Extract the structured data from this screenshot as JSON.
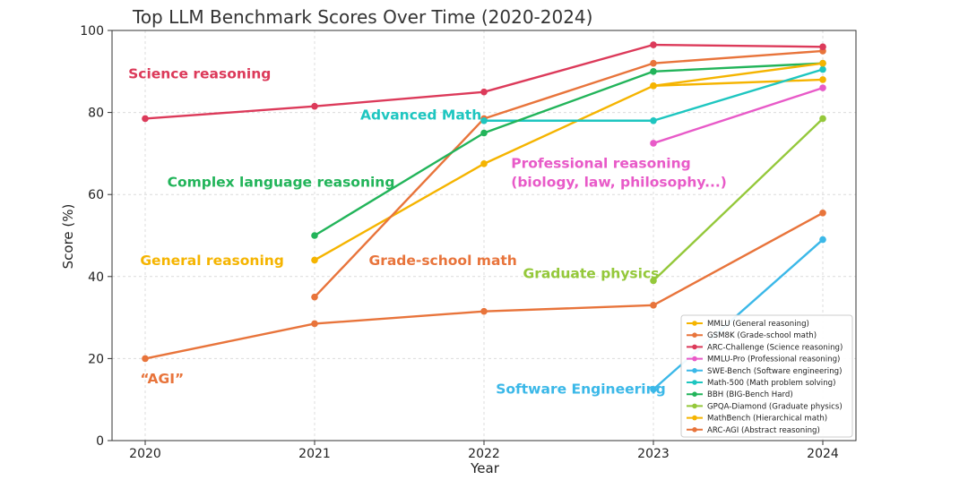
{
  "chart_data": {
    "type": "line",
    "title": "Top LLM Benchmark Scores Over Time (2020-2024)",
    "xlabel": "Year",
    "ylabel": "Score (%)",
    "x": [
      2020,
      2021,
      2022,
      2023,
      2024
    ],
    "xlim": [
      2020,
      2024
    ],
    "ylim": [
      0,
      100
    ],
    "yticks": [
      0,
      20,
      40,
      60,
      80,
      100
    ],
    "grid": true,
    "legend_position": "bottom-right",
    "series": [
      {
        "name": "MMLU (General reasoning)",
        "color": "#f5b400",
        "points": [
          [
            2021,
            44
          ],
          [
            2022,
            67.5
          ],
          [
            2023,
            86.5
          ],
          [
            2024,
            88
          ]
        ]
      },
      {
        "name": "GSM8K (Grade-school math)",
        "color": "#e8743b",
        "points": [
          [
            2021,
            35
          ],
          [
            2022,
            78.5
          ],
          [
            2023,
            92
          ],
          [
            2024,
            95
          ]
        ]
      },
      {
        "name": "ARC-Challenge (Science reasoning)",
        "color": "#dc3a5a",
        "points": [
          [
            2020,
            78.5
          ],
          [
            2021,
            81.5
          ],
          [
            2022,
            85
          ],
          [
            2023,
            96.5
          ],
          [
            2024,
            96
          ]
        ]
      },
      {
        "name": "MMLU-Pro (Professional reasoning)",
        "color": "#e85ac8",
        "points": [
          [
            2023,
            72.5
          ],
          [
            2024,
            86
          ]
        ]
      },
      {
        "name": "SWE-Bench (Software engineering)",
        "color": "#3bb8e8",
        "points": [
          [
            2023,
            12.5
          ],
          [
            2024,
            49
          ]
        ]
      },
      {
        "name": "Math-500 (Math problem solving)",
        "color": "#1ec6c0",
        "points": [
          [
            2022,
            78
          ],
          [
            2023,
            78
          ],
          [
            2024,
            90.5
          ]
        ]
      },
      {
        "name": "BBH (BIG-Bench Hard)",
        "color": "#22b45a",
        "points": [
          [
            2021,
            50
          ],
          [
            2022,
            75
          ],
          [
            2023,
            90
          ],
          [
            2024,
            92
          ]
        ]
      },
      {
        "name": "GPQA-Diamond (Graduate physics)",
        "color": "#94c83a",
        "points": [
          [
            2023,
            39
          ],
          [
            2024,
            78.5
          ]
        ]
      },
      {
        "name": "MathBench (Hierarchical math)",
        "color": "#f5b400",
        "points": [
          [
            2023,
            86.5
          ],
          [
            2024,
            92
          ]
        ]
      },
      {
        "name": "ARC-AGI (Abstract reasoning)",
        "color": "#e8743b",
        "points": [
          [
            2020,
            20
          ],
          [
            2021,
            28.5
          ],
          [
            2022,
            31.5
          ],
          [
            2023,
            33
          ],
          [
            2024,
            55.5
          ]
        ]
      }
    ],
    "annotations": [
      {
        "text": "Science reasoning",
        "color": "#dc3a5a",
        "x": 2019.9,
        "y": 88.3,
        "anchor": "start"
      },
      {
        "text": "Advanced Math",
        "color": "#1ec6c0",
        "x": 2021.27,
        "y": 78.3,
        "anchor": "start"
      },
      {
        "text": "Complex language reasoning",
        "color": "#22b45a",
        "x": 2020.13,
        "y": 61.9,
        "anchor": "start"
      },
      {
        "text": "General reasoning",
        "color": "#f5b400",
        "x": 2019.97,
        "y": 42.8,
        "anchor": "start"
      },
      {
        "text": "Grade-school math",
        "color": "#e8743b",
        "x": 2021.32,
        "y": 42.8,
        "anchor": "start"
      },
      {
        "text": "Graduate physics",
        "color": "#94c83a",
        "x": 2022.23,
        "y": 39.6,
        "anchor": "start"
      },
      {
        "text": "Software Engineering",
        "color": "#3bb8e8",
        "x": 2022.07,
        "y": 11.5,
        "anchor": "start"
      },
      {
        "text": "“AGI”",
        "color": "#e8743b",
        "x": 2019.97,
        "y": 14,
        "anchor": "start"
      }
    ],
    "multiline_annotations": [
      {
        "lines": [
          "Professional reasoning",
          "(biology, law, philosophy...)"
        ],
        "color": "#e85ac8",
        "x": 2022.16,
        "y": 66.5,
        "anchor": "start"
      }
    ]
  }
}
